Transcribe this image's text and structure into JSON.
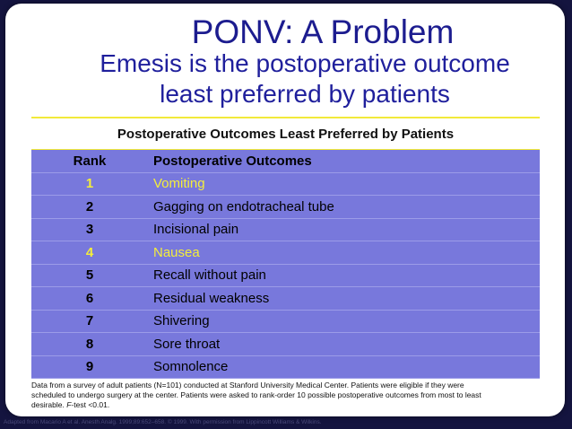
{
  "title": "PONV: A Problem",
  "subtitle": [
    "Emesis is the postoperative outcome",
    "least preferred by patients"
  ],
  "table": {
    "title": "Postoperative Outcomes Least Preferred by Patients",
    "header": [
      "Rank",
      "Postoperative Outcomes"
    ],
    "rows": [
      [
        "1",
        "Vomiting"
      ],
      [
        "2",
        "Gagging on endotracheal tube"
      ],
      [
        "3",
        "Incisional pain"
      ],
      [
        "4",
        "Nausea"
      ],
      [
        "5",
        "Recall without pain"
      ],
      [
        "6",
        "Residual weakness"
      ],
      [
        "7",
        "Shivering"
      ],
      [
        "8",
        "Sore throat"
      ],
      [
        "9",
        "Somnolence"
      ]
    ],
    "highlighted_rows": [
      0,
      3
    ]
  },
  "footnote": [
    "Data from a survey of adult patients (N=101) conducted at Stanford University Medical Center. Patients were eligible if they were scheduled to undergo surgery at the center. Patients were asked to rank-order 10 possible postoperative outcomes from most to least desirable. ",
    "F",
    "-test <0.01."
  ],
  "source": "Adapted from Macario A et al. Anesth Analg. 1999;89:652–658. © 1999. With permission from Lippincott Williams & Wilkins."
}
